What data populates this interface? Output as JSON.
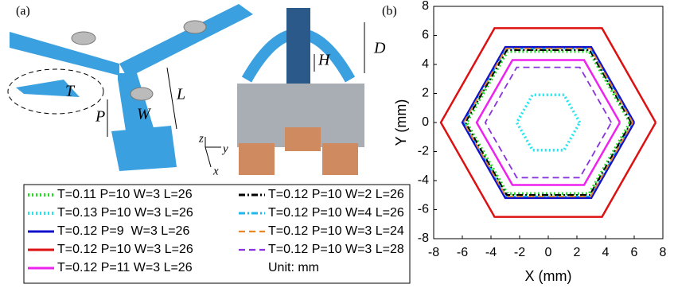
{
  "panel_a": {
    "label": "(a)",
    "dims": {
      "T": "T",
      "P": "P",
      "W": "W",
      "L": "L",
      "H": "H",
      "D": "D"
    },
    "axes": {
      "z": "z",
      "y": "y",
      "x": "x"
    }
  },
  "chart_data": {
    "type": "line",
    "panel_label": "(b)",
    "xlabel": "X (mm)",
    "ylabel": "Y (mm)",
    "xlim": [
      -8,
      8
    ],
    "ylim": [
      -8,
      8
    ],
    "xticks": [
      -8,
      -6,
      -4,
      -2,
      0,
      2,
      4,
      6,
      8
    ],
    "yticks": [
      -8,
      -6,
      -4,
      -2,
      0,
      2,
      4,
      6,
      8
    ],
    "grid": false,
    "legend_note": "Unit: mm",
    "series": [
      {
        "name": "T=0.11 P=10 W=3 L=26",
        "color": "#22dd22",
        "style": "dotted",
        "x": [
          5.7,
          2.85,
          -2.85,
          -5.7,
          -2.85,
          2.85,
          5.7
        ],
        "y": [
          0,
          4.9,
          4.9,
          0,
          -4.9,
          -4.9,
          0
        ]
      },
      {
        "name": "T=0.12 P=10 W=2 L=26",
        "color": "#000000",
        "style": "dashdot",
        "x": [
          5.8,
          2.9,
          -2.9,
          -5.8,
          -2.9,
          2.9,
          5.8
        ],
        "y": [
          0,
          5.0,
          5.0,
          0,
          -5.0,
          -5.0,
          0
        ]
      },
      {
        "name": "T=0.13 P=10 W=3 L=26",
        "color": "#22e5ee",
        "style": "dotted",
        "x": [
          2.2,
          1.1,
          -1.1,
          -2.2,
          -1.1,
          1.1,
          2.2
        ],
        "y": [
          0,
          1.9,
          1.9,
          0,
          -1.9,
          -1.9,
          0
        ]
      },
      {
        "name": "T=0.12 P=10 W=4 L=26",
        "color": "#20b8e8",
        "style": "dashdot",
        "x": [
          5.9,
          2.95,
          -2.95,
          -5.9,
          -2.95,
          2.95,
          5.9
        ],
        "y": [
          0,
          5.1,
          5.1,
          0,
          -5.1,
          -5.1,
          0
        ]
      },
      {
        "name": "T=0.12 P=9  W=3 L=26",
        "color": "#1111cc",
        "style": "solid",
        "x": [
          6,
          3,
          -3,
          -6,
          -3,
          3,
          6
        ],
        "y": [
          0,
          5.2,
          5.2,
          0,
          -5.2,
          -5.2,
          0
        ]
      },
      {
        "name": "T=0.12 P=10 W=3 L=24",
        "color": "#e8862a",
        "style": "dashed",
        "x": [
          5.9,
          2.95,
          -2.95,
          -5.9,
          -2.95,
          2.95,
          5.9
        ],
        "y": [
          0,
          5.1,
          5.1,
          0,
          -5.1,
          -5.1,
          0
        ]
      },
      {
        "name": "T=0.12 P=10 W=3 L=26",
        "color": "#dd1111",
        "style": "solid",
        "x": [
          7.5,
          3.75,
          -3.75,
          -7.5,
          -3.75,
          3.75,
          7.5
        ],
        "y": [
          0,
          6.5,
          6.5,
          0,
          -6.5,
          -6.5,
          0
        ]
      },
      {
        "name": "T=0.12 P=10 W=3 L=28",
        "color": "#8833dd",
        "style": "dashed",
        "x": [
          4.4,
          2.2,
          -2.2,
          -4.4,
          -2.2,
          2.2,
          4.4
        ],
        "y": [
          0,
          3.8,
          3.8,
          0,
          -3.8,
          -3.8,
          0
        ]
      },
      {
        "name": "T=0.12 P=11 W=3 L=26",
        "color": "#ee22ee",
        "style": "solid",
        "x": [
          5,
          2.5,
          -2.5,
          -5,
          -2.5,
          2.5,
          5
        ],
        "y": [
          0,
          4.3,
          4.3,
          0,
          -4.3,
          -4.3,
          0
        ]
      }
    ]
  }
}
